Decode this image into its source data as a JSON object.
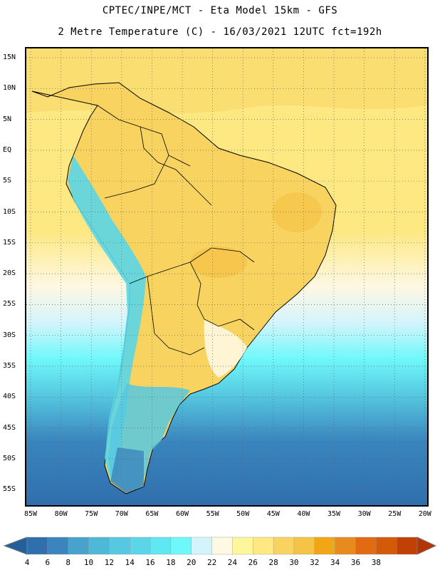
{
  "header": {
    "line1": "CPTEC/INPE/MCT -  Eta Model 15km - GFS",
    "line2": "2 Metre Temperature (C) - 16/03/2021 12UTC fct=192h"
  },
  "map": {
    "lat_labels": [
      "15N",
      "10N",
      "5N",
      "EQ",
      "5S",
      "10S",
      "15S",
      "20S",
      "25S",
      "30S",
      "35S",
      "40S",
      "45S",
      "50S",
      "55S"
    ],
    "lon_labels": [
      "85W",
      "80W",
      "75W",
      "70W",
      "65W",
      "60W",
      "55W",
      "50W",
      "45W",
      "40W",
      "35W",
      "30W",
      "25W",
      "20W"
    ],
    "lat_range": [
      -57.5,
      17.5
    ],
    "lon_range": [
      -87.0,
      -20.0
    ]
  },
  "legend": {
    "values": [
      "4",
      "6",
      "8",
      "10",
      "12",
      "14",
      "16",
      "18",
      "20",
      "22",
      "24",
      "26",
      "28",
      "30",
      "32",
      "34",
      "36",
      "38"
    ],
    "colors": [
      "#2f6fae",
      "#3a85bd",
      "#47a3cc",
      "#4fb8d8",
      "#56c8e0",
      "#5bd6e8",
      "#60e8f2",
      "#6ff8fb",
      "#d4f4fc",
      "#fff8e2",
      "#fef69b",
      "#fde882",
      "#f8d35f",
      "#f5c447",
      "#f1a715",
      "#e98a1d",
      "#e26a10",
      "#d25a08",
      "#c04005"
    ],
    "low_arrow_color": "#255f9a",
    "high_arrow_color": "#b43404"
  }
}
